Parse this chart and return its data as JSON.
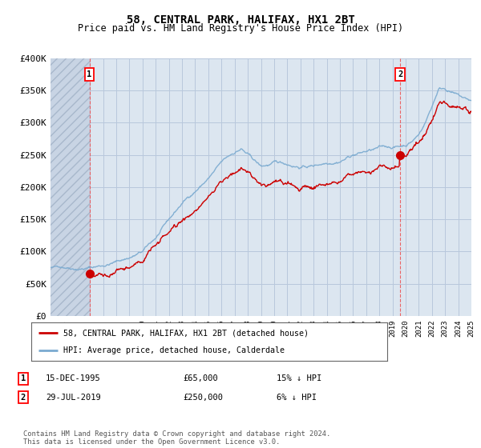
{
  "title": "58, CENTRAL PARK, HALIFAX, HX1 2BT",
  "subtitle": "Price paid vs. HM Land Registry's House Price Index (HPI)",
  "ylim": [
    0,
    400000
  ],
  "yticks": [
    0,
    50000,
    100000,
    150000,
    200000,
    250000,
    300000,
    350000,
    400000
  ],
  "ytick_labels": [
    "£0",
    "£50K",
    "£100K",
    "£150K",
    "£200K",
    "£250K",
    "£300K",
    "£350K",
    "£400K"
  ],
  "sale1_date": 1995.96,
  "sale1_price": 65000,
  "sale2_date": 2019.58,
  "sale2_price": 250000,
  "sale1_text": "15-DEC-1995",
  "sale1_price_text": "£65,000",
  "sale1_note": "15% ↓ HPI",
  "sale2_text": "29-JUL-2019",
  "sale2_price_text": "£250,000",
  "sale2_note": "6% ↓ HPI",
  "legend_property": "58, CENTRAL PARK, HALIFAX, HX1 2BT (detached house)",
  "legend_hpi": "HPI: Average price, detached house, Calderdale",
  "line_color": "#cc0000",
  "hpi_color": "#7aaad0",
  "footer": "Contains HM Land Registry data © Crown copyright and database right 2024.\nThis data is licensed under the Open Government Licence v3.0.",
  "plot_bg": "#dce6f0",
  "hatch_color": "#c8d4e4",
  "grid_color": "#b8c8dc"
}
